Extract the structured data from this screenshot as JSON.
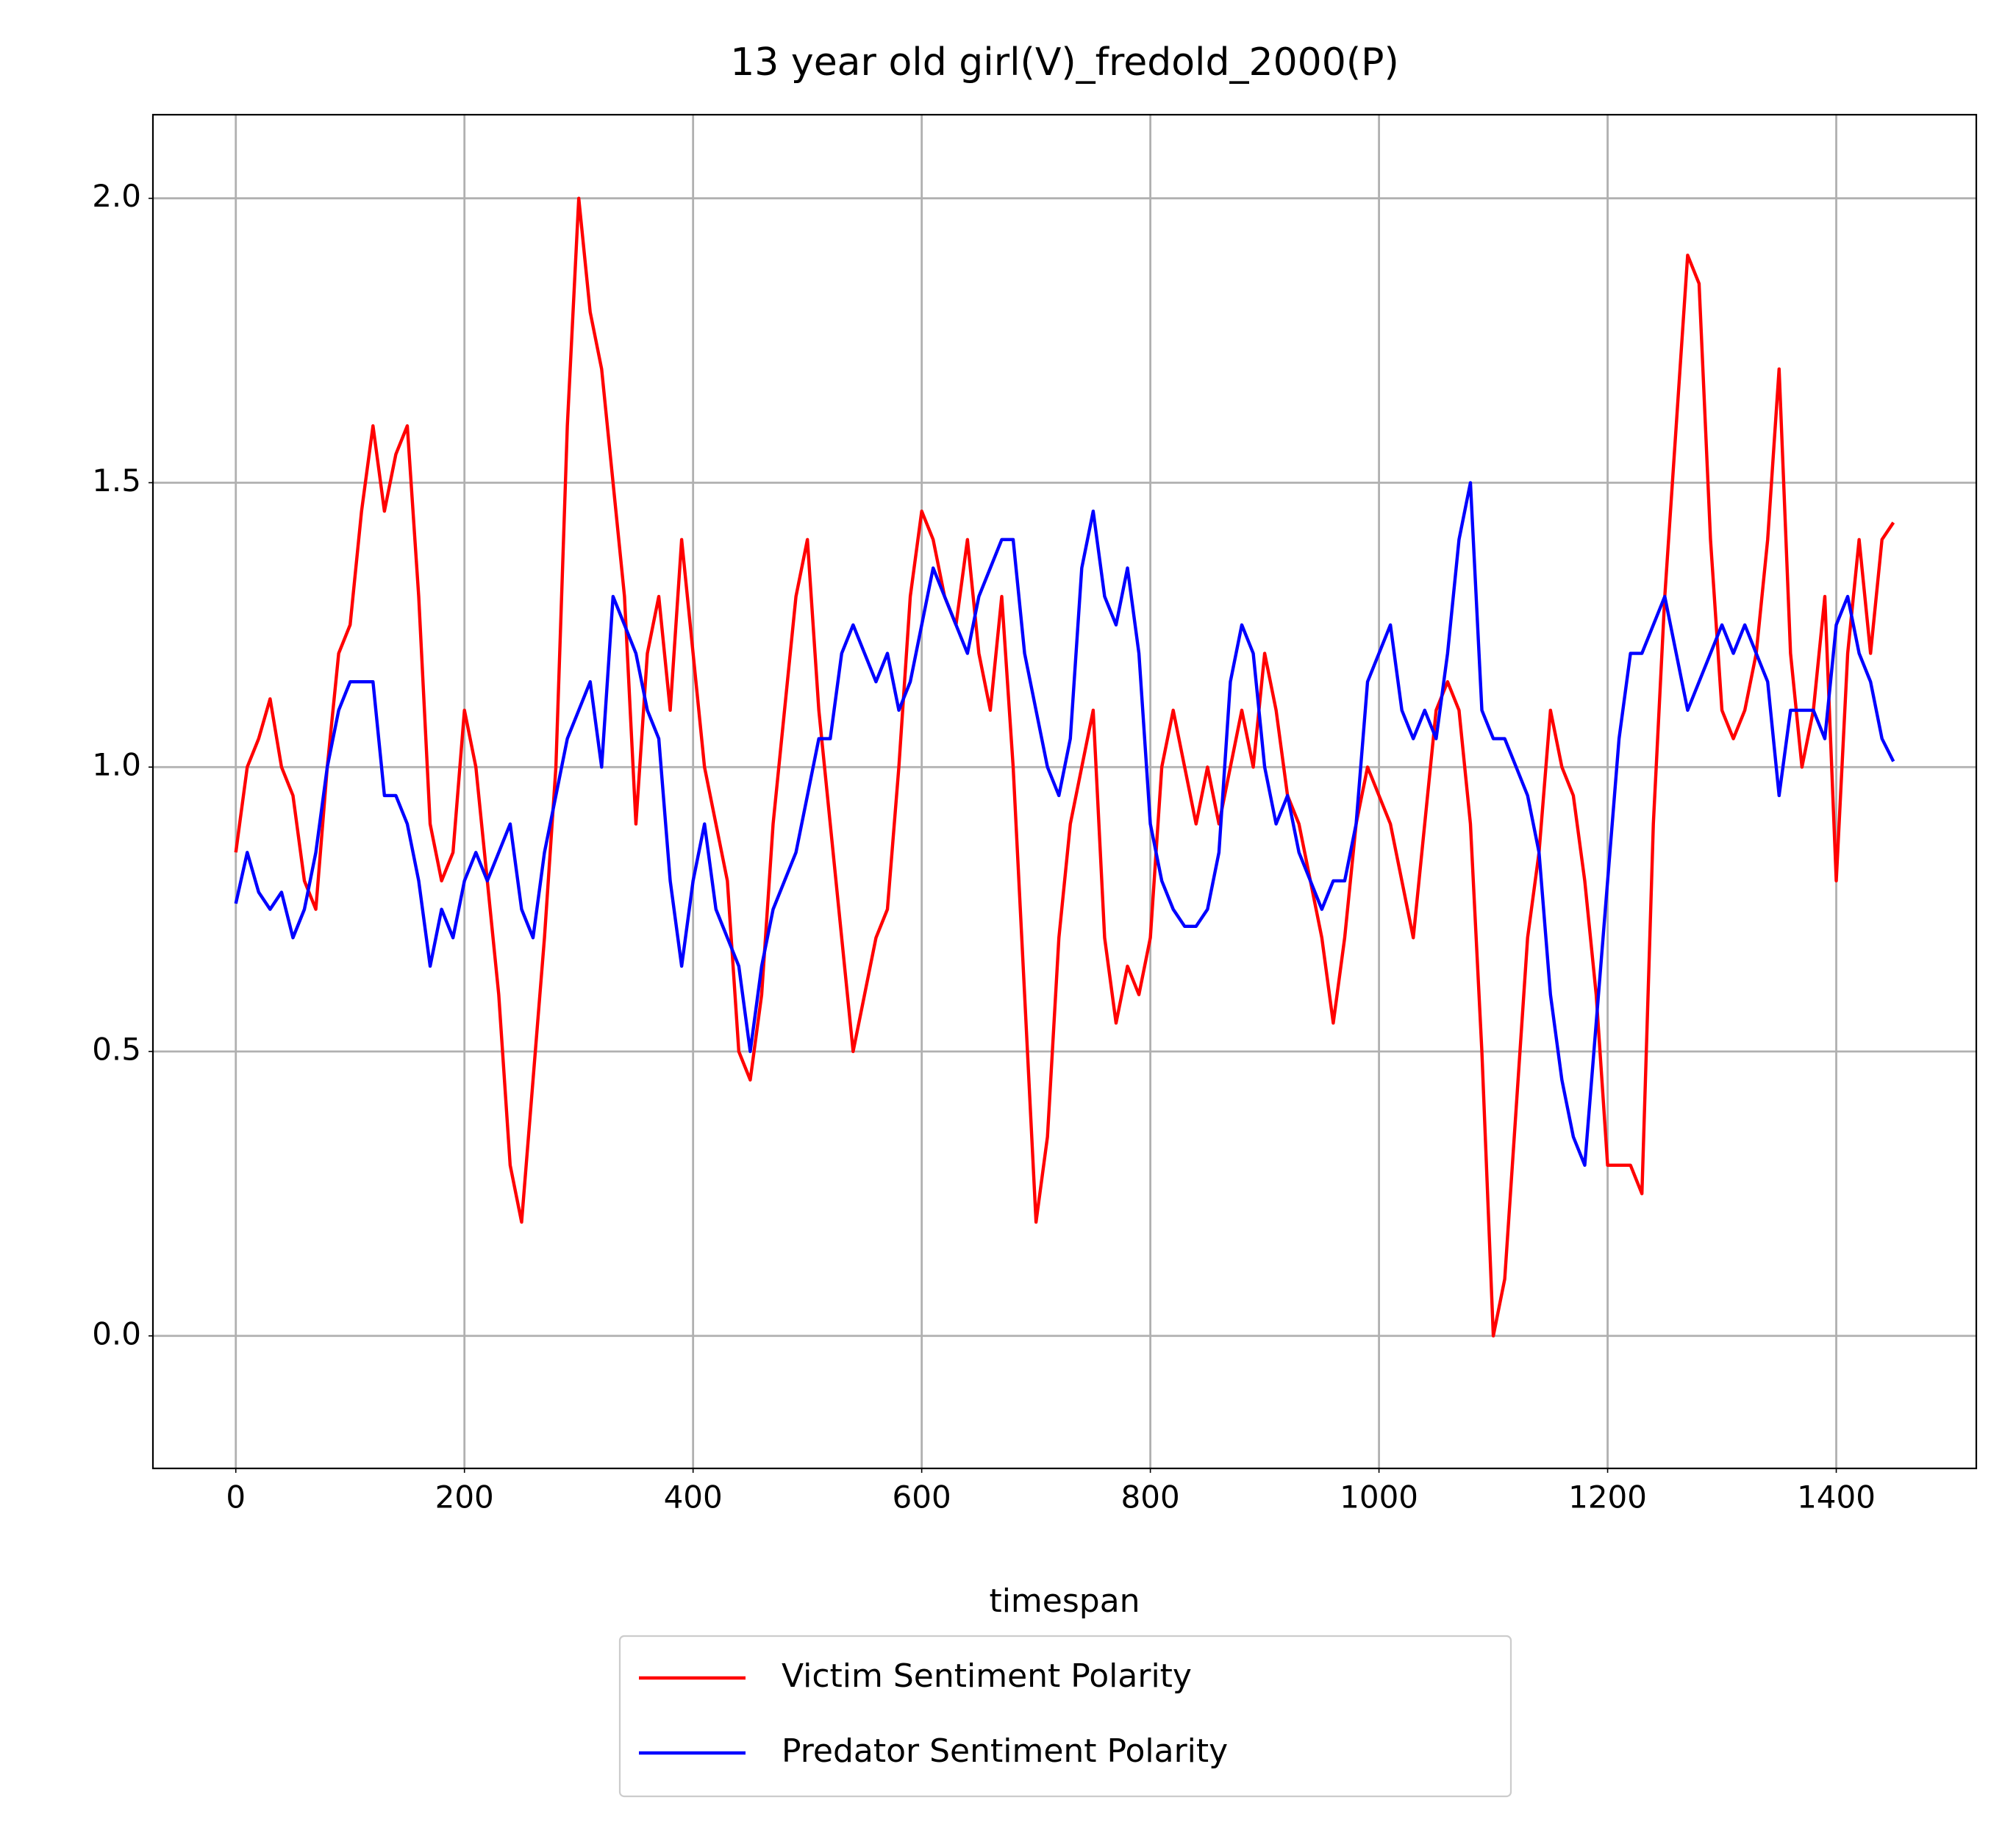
{
  "chart_data": {
    "type": "line",
    "title": "13 year old girl(V)_fredold_2000(P)",
    "x_label": "timespan",
    "x": [
      0,
      10,
      20,
      30,
      40,
      50,
      60,
      70,
      80,
      90,
      100,
      110,
      120,
      130,
      140,
      150,
      160,
      170,
      180,
      190,
      200,
      210,
      220,
      230,
      240,
      250,
      260,
      270,
      280,
      290,
      300,
      310,
      320,
      330,
      340,
      350,
      360,
      370,
      380,
      390,
      400,
      410,
      420,
      430,
      440,
      450,
      460,
      470,
      480,
      490,
      500,
      510,
      520,
      530,
      540,
      550,
      560,
      570,
      580,
      590,
      600,
      610,
      620,
      630,
      640,
      650,
      660,
      670,
      680,
      690,
      700,
      710,
      720,
      730,
      740,
      750,
      760,
      770,
      780,
      790,
      800,
      810,
      820,
      830,
      840,
      850,
      860,
      870,
      880,
      890,
      900,
      910,
      920,
      930,
      940,
      950,
      960,
      970,
      980,
      990,
      1000,
      1010,
      1020,
      1030,
      1040,
      1050,
      1060,
      1070,
      1080,
      1090,
      1100,
      1110,
      1120,
      1130,
      1140,
      1150,
      1160,
      1170,
      1180,
      1190,
      1200,
      1210,
      1220,
      1230,
      1240,
      1250,
      1260,
      1270,
      1280,
      1290,
      1300,
      1310,
      1320,
      1330,
      1340,
      1350,
      1360,
      1370,
      1380,
      1390,
      1400,
      1410,
      1420,
      1430,
      1440,
      1450
    ],
    "series": [
      {
        "name": "Victim Sentiment Polarity",
        "color": "#ff0000",
        "values": [
          0.85,
          1.0,
          1.05,
          1.12,
          1.0,
          0.95,
          0.8,
          0.75,
          1.0,
          1.2,
          1.25,
          1.45,
          1.6,
          1.45,
          1.55,
          1.6,
          1.3,
          0.9,
          0.8,
          0.85,
          1.1,
          1.0,
          0.8,
          0.6,
          0.3,
          0.2,
          0.45,
          0.7,
          1.0,
          1.6,
          2.0,
          1.8,
          1.7,
          1.5,
          1.3,
          0.9,
          1.2,
          1.3,
          1.1,
          1.4,
          1.2,
          1.0,
          0.9,
          0.8,
          0.5,
          0.45,
          0.6,
          0.9,
          1.1,
          1.3,
          1.4,
          1.1,
          0.9,
          0.7,
          0.5,
          0.6,
          0.7,
          0.75,
          1.0,
          1.3,
          1.45,
          1.4,
          1.3,
          1.25,
          1.4,
          1.2,
          1.1,
          1.3,
          1.0,
          0.6,
          0.2,
          0.35,
          0.7,
          0.9,
          1.0,
          1.1,
          0.7,
          0.55,
          0.65,
          0.6,
          0.7,
          1.0,
          1.1,
          1.0,
          0.9,
          1.0,
          0.9,
          1.0,
          1.1,
          1.0,
          1.2,
          1.1,
          0.95,
          0.9,
          0.8,
          0.7,
          0.55,
          0.7,
          0.9,
          1.0,
          0.95,
          0.9,
          0.8,
          0.7,
          0.9,
          1.1,
          1.15,
          1.1,
          0.9,
          0.5,
          0.0,
          0.1,
          0.4,
          0.7,
          0.85,
          1.1,
          1.0,
          0.95,
          0.8,
          0.6,
          0.3,
          0.3,
          0.3,
          0.25,
          0.9,
          1.3,
          1.6,
          1.9,
          1.85,
          1.4,
          1.1,
          1.05,
          1.1,
          1.2,
          1.4,
          1.7,
          1.2,
          1.0,
          1.1,
          1.3,
          0.8,
          1.2,
          1.4,
          1.2,
          1.4,
          1.43
        ]
      },
      {
        "name": "Predator Sentiment Polarity",
        "color": "#0000ff",
        "values": [
          0.76,
          0.85,
          0.78,
          0.75,
          0.78,
          0.7,
          0.75,
          0.85,
          1.0,
          1.1,
          1.15,
          1.15,
          1.15,
          0.95,
          0.95,
          0.9,
          0.8,
          0.65,
          0.75,
          0.7,
          0.8,
          0.85,
          0.8,
          0.85,
          0.9,
          0.75,
          0.7,
          0.85,
          0.95,
          1.05,
          1.1,
          1.15,
          1.0,
          1.3,
          1.25,
          1.2,
          1.1,
          1.05,
          0.8,
          0.65,
          0.8,
          0.9,
          0.75,
          0.7,
          0.65,
          0.5,
          0.65,
          0.75,
          0.8,
          0.85,
          0.95,
          1.05,
          1.05,
          1.2,
          1.25,
          1.2,
          1.15,
          1.2,
          1.1,
          1.15,
          1.25,
          1.35,
          1.3,
          1.25,
          1.2,
          1.3,
          1.35,
          1.4,
          1.4,
          1.2,
          1.1,
          1.0,
          0.95,
          1.05,
          1.35,
          1.45,
          1.3,
          1.25,
          1.35,
          1.2,
          0.9,
          0.8,
          0.75,
          0.72,
          0.72,
          0.75,
          0.85,
          1.15,
          1.25,
          1.2,
          1.0,
          0.9,
          0.95,
          0.85,
          0.8,
          0.75,
          0.8,
          0.8,
          0.9,
          1.15,
          1.2,
          1.25,
          1.1,
          1.05,
          1.1,
          1.05,
          1.2,
          1.4,
          1.5,
          1.1,
          1.05,
          1.05,
          1.0,
          0.95,
          0.85,
          0.6,
          0.45,
          0.35,
          0.3,
          0.55,
          0.8,
          1.05,
          1.2,
          1.2,
          1.25,
          1.3,
          1.2,
          1.1,
          1.15,
          1.2,
          1.25,
          1.2,
          1.25,
          1.2,
          1.15,
          0.95,
          1.1,
          1.1,
          1.1,
          1.05,
          1.25,
          1.3,
          1.2,
          1.15,
          1.05,
          1.01
        ]
      }
    ],
    "xlim": [
      -72.5,
      1522.5
    ],
    "ylim": [
      -0.233,
      2.147
    ],
    "xticks": [
      0,
      200,
      400,
      600,
      800,
      1000,
      1200,
      1400
    ],
    "yticks": [
      {
        "value": 0,
        "label": "0.0"
      },
      0.5,
      {
        "value": 1,
        "label": "1.0"
      },
      1.5,
      {
        "value": 2,
        "label": "2.0"
      }
    ],
    "grid": true,
    "legend": "below"
  }
}
